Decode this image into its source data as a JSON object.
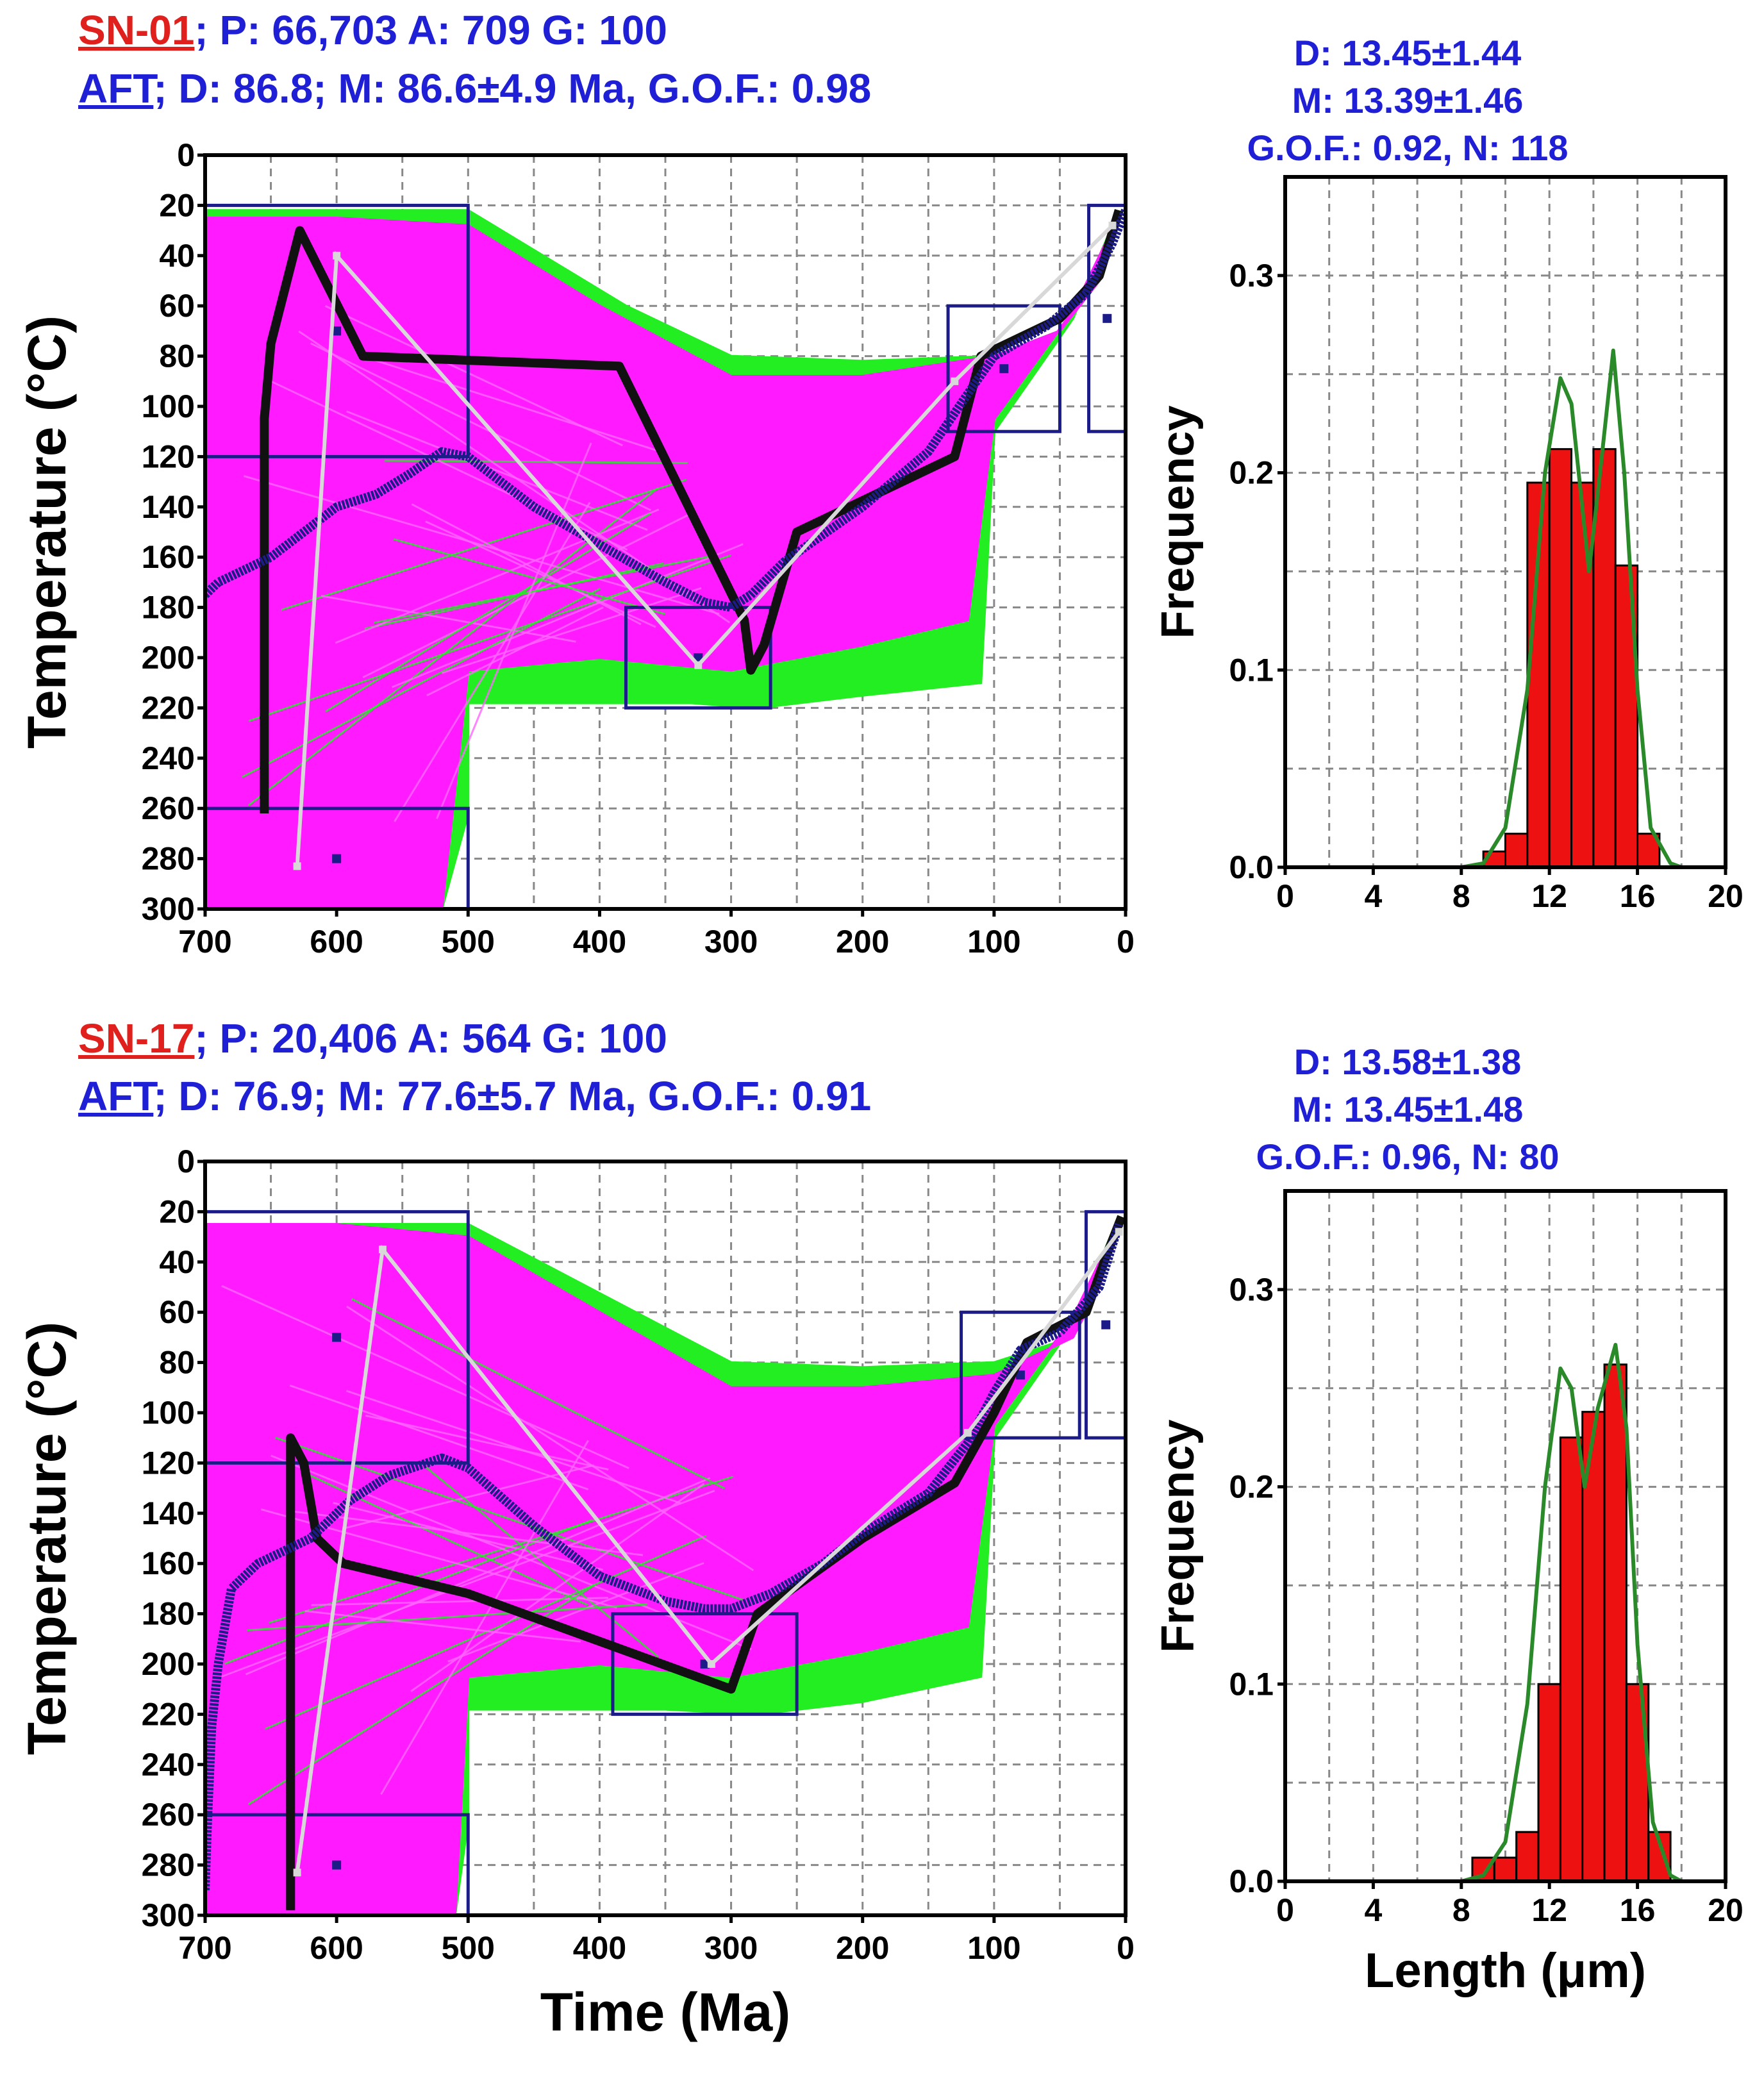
{
  "panels": [
    {
      "sample": "SN-01",
      "ptag": "; P: 66,703 A: 709 G: 100",
      "aft": "AFT",
      "aftline": "; D: 86.8; M: 86.6±4.9 Ma, G.O.F.: 0.98",
      "stats": [
        "D: 13.45±1.44",
        "M: 13.39±1.46",
        "G.O.F.: 0.92, N: 118"
      ]
    },
    {
      "sample": "SN-17",
      "ptag": "; P: 20,406 A: 564 G: 100",
      "aft": "AFT",
      "aftline": "; D: 76.9; M: 77.6±5.7 Ma, G.O.F.: 0.91",
      "stats": [
        "D: 13.58±1.38",
        "M: 13.45±1.48",
        "G.O.F.: 0.96, N: 80"
      ]
    }
  ],
  "colors": {
    "good_paths": "#22ee22",
    "acceptable_paths": "#ff1aff",
    "best_fit": "#111111",
    "weighted_mean": "#1c1c88",
    "constraint_box": "#1c1c88",
    "expected_path": "#d8d8d8",
    "histogram_bar": "#ee1111",
    "pdf_curve": "#2a8a2a",
    "sample_label": "#e0201c",
    "stats_text": "#1f1fd6"
  },
  "chart_data": [
    {
      "type": "line",
      "panel": "SN-01 thermal history",
      "xlabel": "Time (Ma)",
      "ylabel": "Temperature (°C)",
      "xlim": [
        700,
        0
      ],
      "ylim": [
        300,
        0
      ],
      "xticks": [
        700,
        600,
        500,
        400,
        300,
        200,
        100,
        0
      ],
      "yticks": [
        0,
        20,
        40,
        60,
        80,
        100,
        120,
        140,
        160,
        180,
        200,
        220,
        240,
        260,
        280,
        300
      ],
      "envelopes": {
        "good_upper": [
          [
            700,
            22
          ],
          [
            600,
            22
          ],
          [
            500,
            22
          ],
          [
            380,
            60
          ],
          [
            300,
            80
          ],
          [
            200,
            82
          ],
          [
            100,
            80
          ],
          [
            50,
            70
          ],
          [
            20,
            50
          ],
          [
            5,
            22
          ]
        ],
        "good_lower": [
          [
            5,
            22
          ],
          [
            40,
            65
          ],
          [
            100,
            110
          ],
          [
            110,
            210
          ],
          [
            200,
            215
          ],
          [
            280,
            220
          ],
          [
            330,
            218
          ],
          [
            500,
            218
          ],
          [
            500,
            262
          ],
          [
            520,
            300
          ],
          [
            700,
            300
          ]
        ],
        "acceptable_upper": [
          [
            700,
            25
          ],
          [
            600,
            25
          ],
          [
            500,
            28
          ],
          [
            400,
            60
          ],
          [
            300,
            88
          ],
          [
            200,
            88
          ],
          [
            100,
            80
          ],
          [
            50,
            70
          ],
          [
            20,
            50
          ],
          [
            5,
            24
          ]
        ],
        "acceptable_lower": [
          [
            5,
            24
          ],
          [
            40,
            62
          ],
          [
            100,
            105
          ],
          [
            120,
            185
          ],
          [
            200,
            195
          ],
          [
            300,
            205
          ],
          [
            400,
            200
          ],
          [
            500,
            205
          ],
          [
            520,
            300
          ],
          [
            700,
            300
          ]
        ]
      },
      "constraint_boxes": [
        {
          "t": [
            700,
            500
          ],
          "temp": [
            20,
            120
          ]
        },
        {
          "t": [
            700,
            500
          ],
          "temp": [
            260,
            300
          ]
        },
        {
          "t": [
            380,
            270
          ],
          "temp": [
            180,
            220
          ]
        },
        {
          "t": [
            135,
            50
          ],
          "temp": [
            60,
            110
          ]
        },
        {
          "t": [
            28,
            0
          ],
          "temp": [
            20,
            110
          ]
        }
      ],
      "series": [
        {
          "name": "best_fit",
          "points": [
            [
              655,
              262
            ],
            [
              655,
              105
            ],
            [
              650,
              75
            ],
            [
              628,
              30
            ],
            [
              580,
              80
            ],
            [
              385,
              84
            ],
            [
              290,
              185
            ],
            [
              285,
              205
            ],
            [
              275,
              195
            ],
            [
              250,
              150
            ],
            [
              130,
              120
            ],
            [
              110,
              80
            ],
            [
              50,
              65
            ],
            [
              20,
              48
            ],
            [
              5,
              22
            ]
          ]
        },
        {
          "name": "weighted_mean",
          "points": [
            [
              700,
              175
            ],
            [
              690,
              170
            ],
            [
              650,
              160
            ],
            [
              620,
              148
            ],
            [
              600,
              140
            ],
            [
              570,
              135
            ],
            [
              545,
              127
            ],
            [
              520,
              118
            ],
            [
              500,
              120
            ],
            [
              450,
              140
            ],
            [
              400,
              155
            ],
            [
              350,
              170
            ],
            [
              320,
              178
            ],
            [
              300,
              180
            ],
            [
              285,
              175
            ],
            [
              260,
              162
            ],
            [
              200,
              140
            ],
            [
              150,
              118
            ],
            [
              120,
              95
            ],
            [
              100,
              80
            ],
            [
              60,
              68
            ],
            [
              30,
              55
            ],
            [
              10,
              35
            ],
            [
              0,
              22
            ]
          ]
        },
        {
          "name": "expected_path",
          "points": [
            [
              630,
              283
            ],
            [
              600,
              40
            ],
            [
              325,
              203
            ],
            [
              130,
              90
            ],
            [
              10,
              28
            ]
          ]
        }
      ]
    },
    {
      "type": "bar",
      "panel": "SN-01 track length distribution",
      "xlabel": "Length (μm)",
      "ylabel": "Frequency",
      "xlim": [
        0,
        20
      ],
      "ylim": [
        0,
        0.35
      ],
      "xticks": [
        0,
        4,
        8,
        12,
        16,
        20
      ],
      "yticks": [
        0.0,
        0.1,
        0.2,
        0.3
      ],
      "bin_edges": [
        9,
        10,
        11,
        12,
        13,
        14,
        15,
        16,
        17
      ],
      "values": [
        0.008,
        0.017,
        0.195,
        0.212,
        0.195,
        0.212,
        0.153,
        0.017
      ],
      "fit_curve": [
        [
          0,
          0
        ],
        [
          8,
          0
        ],
        [
          9,
          0.002
        ],
        [
          10,
          0.02
        ],
        [
          11,
          0.09
        ],
        [
          11.8,
          0.2
        ],
        [
          12.5,
          0.248
        ],
        [
          13,
          0.235
        ],
        [
          13.8,
          0.15
        ],
        [
          14.3,
          0.2
        ],
        [
          14.9,
          0.262
        ],
        [
          15.4,
          0.2
        ],
        [
          16,
          0.09
        ],
        [
          16.6,
          0.02
        ],
        [
          17.5,
          0.002
        ],
        [
          18,
          0
        ],
        [
          20,
          0
        ]
      ]
    },
    {
      "type": "line",
      "panel": "SN-17 thermal history",
      "xlabel": "Time (Ma)",
      "ylabel": "Temperature (°C)",
      "xlim": [
        700,
        0
      ],
      "ylim": [
        300,
        0
      ],
      "xticks": [
        700,
        600,
        500,
        400,
        300,
        200,
        100,
        0
      ],
      "yticks": [
        0,
        20,
        40,
        60,
        80,
        100,
        120,
        140,
        160,
        180,
        200,
        220,
        240,
        260,
        280,
        300
      ],
      "envelopes": {
        "good_upper": [
          [
            700,
            25
          ],
          [
            600,
            25
          ],
          [
            500,
            25
          ],
          [
            300,
            80
          ],
          [
            200,
            82
          ],
          [
            100,
            80
          ],
          [
            40,
            70
          ],
          [
            20,
            50
          ],
          [
            5,
            22
          ]
        ],
        "good_lower": [
          [
            5,
            22
          ],
          [
            40,
            65
          ],
          [
            100,
            110
          ],
          [
            110,
            205
          ],
          [
            200,
            215
          ],
          [
            280,
            220
          ],
          [
            350,
            218
          ],
          [
            500,
            218
          ],
          [
            500,
            262
          ],
          [
            510,
            300
          ],
          [
            700,
            300
          ]
        ],
        "acceptable_upper": [
          [
            700,
            25
          ],
          [
            600,
            25
          ],
          [
            500,
            30
          ],
          [
            400,
            60
          ],
          [
            300,
            90
          ],
          [
            200,
            90
          ],
          [
            100,
            85
          ],
          [
            40,
            70
          ],
          [
            20,
            50
          ],
          [
            5,
            24
          ]
        ],
        "acceptable_lower": [
          [
            5,
            24
          ],
          [
            40,
            62
          ],
          [
            100,
            105
          ],
          [
            120,
            185
          ],
          [
            200,
            195
          ],
          [
            300,
            205
          ],
          [
            400,
            200
          ],
          [
            500,
            205
          ],
          [
            510,
            300
          ],
          [
            700,
            300
          ]
        ]
      },
      "constraint_boxes": [
        {
          "t": [
            700,
            500
          ],
          "temp": [
            20,
            120
          ]
        },
        {
          "t": [
            700,
            500
          ],
          "temp": [
            260,
            300
          ]
        },
        {
          "t": [
            390,
            250
          ],
          "temp": [
            180,
            220
          ]
        },
        {
          "t": [
            125,
            35
          ],
          "temp": [
            60,
            110
          ]
        },
        {
          "t": [
            30,
            0
          ],
          "temp": [
            20,
            110
          ]
        }
      ],
      "series": [
        {
          "name": "best_fit",
          "points": [
            [
              635,
              298
            ],
            [
              635,
              110
            ],
            [
              625,
              120
            ],
            [
              615,
              150
            ],
            [
              595,
              160
            ],
            [
              500,
              172
            ],
            [
              300,
              210
            ],
            [
              280,
              180
            ],
            [
              200,
              150
            ],
            [
              130,
              128
            ],
            [
              100,
              100
            ],
            [
              75,
              72
            ],
            [
              30,
              60
            ],
            [
              15,
              38
            ],
            [
              3,
              22
            ]
          ]
        },
        {
          "name": "weighted_mean",
          "points": [
            [
              700,
              290
            ],
            [
              698,
              260
            ],
            [
              695,
              225
            ],
            [
              690,
              200
            ],
            [
              680,
              170
            ],
            [
              660,
              160
            ],
            [
              620,
              150
            ],
            [
              590,
              135
            ],
            [
              560,
              125
            ],
            [
              520,
              118
            ],
            [
              500,
              122
            ],
            [
              450,
              145
            ],
            [
              400,
              165
            ],
            [
              350,
              175
            ],
            [
              320,
              178
            ],
            [
              300,
              178
            ],
            [
              270,
              172
            ],
            [
              230,
              160
            ],
            [
              200,
              148
            ],
            [
              150,
              132
            ],
            [
              120,
              112
            ],
            [
              100,
              92
            ],
            [
              80,
              75
            ],
            [
              50,
              68
            ],
            [
              20,
              50
            ],
            [
              5,
              25
            ]
          ]
        },
        {
          "name": "expected_path",
          "points": [
            [
              630,
              283
            ],
            [
              565,
              35
            ],
            [
              315,
              200
            ],
            [
              120,
              108
            ],
            [
              5,
              28
            ]
          ]
        }
      ]
    },
    {
      "type": "bar",
      "panel": "SN-17 track length distribution",
      "xlabel": "Length (μm)",
      "ylabel": "Frequency",
      "xlim": [
        0,
        20
      ],
      "ylim": [
        0,
        0.35
      ],
      "xticks": [
        0,
        4,
        8,
        12,
        16,
        20
      ],
      "yticks": [
        0.0,
        0.1,
        0.2,
        0.3
      ],
      "bin_edges": [
        8.5,
        9.5,
        10.5,
        11.5,
        12.5,
        13.5,
        14.5,
        15.5,
        16.5,
        17.5
      ],
      "values": [
        0.012,
        0.012,
        0.025,
        0.1,
        0.225,
        0.238,
        0.262,
        0.1,
        0.025
      ],
      "fit_curve": [
        [
          0,
          0
        ],
        [
          8,
          0
        ],
        [
          9,
          0.003
        ],
        [
          10,
          0.02
        ],
        [
          11,
          0.09
        ],
        [
          11.8,
          0.2
        ],
        [
          12.5,
          0.26
        ],
        [
          13,
          0.25
        ],
        [
          13.6,
          0.2
        ],
        [
          14.2,
          0.24
        ],
        [
          15,
          0.272
        ],
        [
          15.5,
          0.23
        ],
        [
          16,
          0.12
        ],
        [
          16.7,
          0.03
        ],
        [
          17.5,
          0.003
        ],
        [
          18,
          0
        ],
        [
          20,
          0
        ]
      ]
    }
  ]
}
